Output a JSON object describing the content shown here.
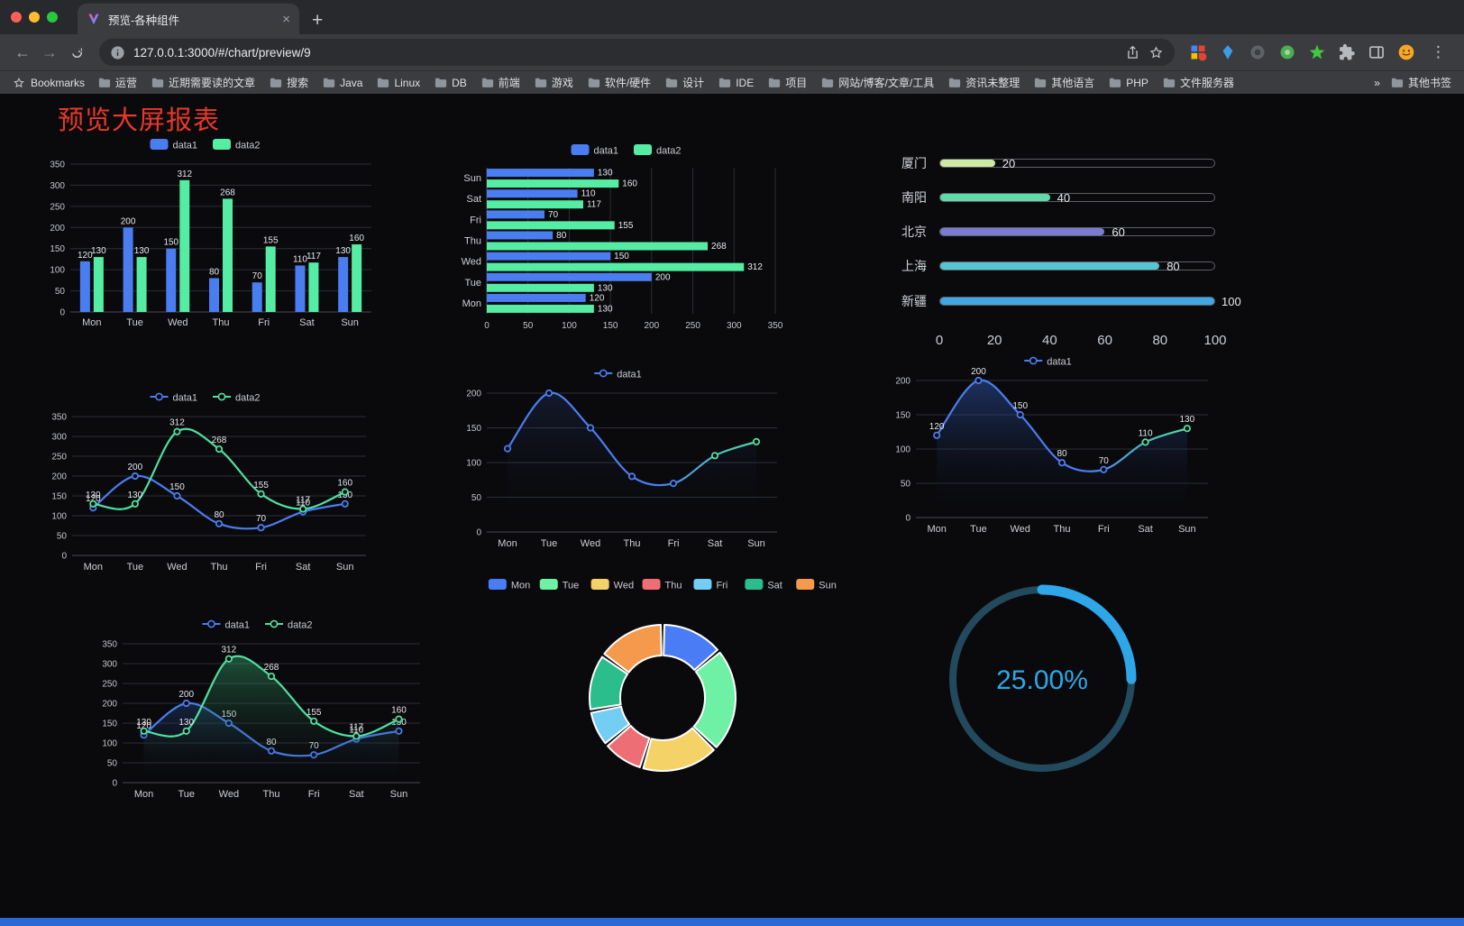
{
  "browser": {
    "tab": {
      "title": "预览-各种组件",
      "close_glyph": "×"
    },
    "new_tab_glyph": "+",
    "menu_glyph": "⋮",
    "address": {
      "url": "127.0.0.1:3000/#/chart/preview/9"
    },
    "bookmarks_bar": {
      "bookmarks_label": "Bookmarks",
      "folders": [
        "运营",
        "近期需要读的文章",
        "搜索",
        "Java",
        "Linux",
        "DB",
        "前端",
        "游戏",
        "软件/硬件",
        "设计",
        "IDE",
        "项目",
        "网站/博客/文章/工具",
        "资讯未整理",
        "其他语言",
        "PHP",
        "文件服务器"
      ],
      "overflow_glyph": "»",
      "other_bookmarks_label": "其他书签"
    }
  },
  "page": {
    "title": "预览大屏报表",
    "accent_color": "#e8382a",
    "footer_color": "#2a6ad4"
  },
  "chart_data": [
    {
      "type": "bar",
      "categories": [
        "Mon",
        "Tue",
        "Wed",
        "Thu",
        "Fri",
        "Sat",
        "Sun"
      ],
      "series": [
        {
          "name": "data1",
          "color": "#4a7df0",
          "values": [
            120,
            200,
            150,
            80,
            70,
            110,
            130
          ]
        },
        {
          "name": "data2",
          "color": "#55eda3",
          "values": [
            130,
            130,
            312,
            268,
            155,
            117,
            160
          ]
        }
      ],
      "ylim": [
        0,
        350
      ],
      "ytick": 50,
      "legend_position": "top",
      "grid": true,
      "value_labels": true
    },
    {
      "type": "hbar",
      "categories": [
        "Mon",
        "Tue",
        "Wed",
        "Thu",
        "Fri",
        "Sat",
        "Sun"
      ],
      "category_order_top_to_bottom": [
        "Sun",
        "Sat",
        "Fri",
        "Thu",
        "Wed",
        "Tue",
        "Mon"
      ],
      "series": [
        {
          "name": "data1",
          "color": "#4a7df0",
          "values": [
            120,
            200,
            150,
            80,
            70,
            110,
            130
          ]
        },
        {
          "name": "data2",
          "color": "#55eda3",
          "values": [
            130,
            130,
            312,
            268,
            155,
            117,
            160
          ]
        }
      ],
      "xlim": [
        0,
        350
      ],
      "xtick": 50,
      "legend_position": "top",
      "grid": true,
      "value_labels": true
    },
    {
      "type": "progress",
      "max": 100,
      "xticks": [
        0,
        20,
        40,
        60,
        80,
        100
      ],
      "items": [
        {
          "label": "厦门",
          "value": 20,
          "color": "#cdeaa2"
        },
        {
          "label": "南阳",
          "value": 40,
          "color": "#63d9ab"
        },
        {
          "label": "北京",
          "value": 60,
          "color": "#787dd2"
        },
        {
          "label": "上海",
          "value": 80,
          "color": "#58c5d2"
        },
        {
          "label": "新疆",
          "value": 100,
          "color": "#41a6e2"
        }
      ]
    },
    {
      "type": "line",
      "categories": [
        "Mon",
        "Tue",
        "Wed",
        "Thu",
        "Fri",
        "Sat",
        "Sun"
      ],
      "series": [
        {
          "name": "data1",
          "color": "#4a7df0",
          "values": [
            120,
            200,
            150,
            80,
            70,
            110,
            130
          ]
        },
        {
          "name": "data2",
          "color": "#4fe0a0",
          "values": [
            130,
            130,
            312,
            268,
            155,
            117,
            160
          ]
        }
      ],
      "ylim": [
        0,
        350
      ],
      "ytick": 50,
      "legend_position": "top",
      "smooth": true,
      "value_labels": true
    },
    {
      "type": "line",
      "categories": [
        "Mon",
        "Tue",
        "Wed",
        "Thu",
        "Fri",
        "Sat",
        "Sun"
      ],
      "series": [
        {
          "name": "data1",
          "color": "#4a7df0",
          "color_end": "#4fe0a0",
          "values": [
            120,
            200,
            150,
            80,
            70,
            110,
            130
          ],
          "area": "rgba(74,125,240,0.14)"
        }
      ],
      "ylim": [
        0,
        200
      ],
      "ytick": 50,
      "legend_position": "top",
      "smooth": true,
      "value_labels": false
    },
    {
      "type": "line",
      "categories": [
        "Mon",
        "Tue",
        "Wed",
        "Thu",
        "Fri",
        "Sat",
        "Sun"
      ],
      "series": [
        {
          "name": "data1",
          "color": "#4a7df0",
          "color_end": "#4fe0a0",
          "values": [
            120,
            200,
            150,
            80,
            70,
            110,
            130
          ],
          "area": "rgba(56,104,210,0.42)"
        }
      ],
      "ylim": [
        0,
        200
      ],
      "ytick": 50,
      "legend_position": "top",
      "smooth": true,
      "value_labels": true
    },
    {
      "type": "line",
      "categories": [
        "Mon",
        "Tue",
        "Wed",
        "Thu",
        "Fri",
        "Sat",
        "Sun"
      ],
      "series": [
        {
          "name": "data1",
          "color": "#4a7df0",
          "values": [
            120,
            200,
            150,
            80,
            70,
            110,
            130
          ],
          "area": "rgba(52,96,180,0.30)"
        },
        {
          "name": "data2",
          "color": "#4fe0a0",
          "values": [
            130,
            130,
            312,
            268,
            155,
            117,
            160
          ],
          "area": "rgba(64,200,134,0.38)"
        }
      ],
      "ylim": [
        0,
        350
      ],
      "ytick": 50,
      "legend_position": "top",
      "smooth": true,
      "value_labels": true
    },
    {
      "type": "pie",
      "donut": true,
      "inner_radius_ratio": 0.58,
      "labels": [
        "Mon",
        "Tue",
        "Wed",
        "Thu",
        "Fri",
        "Sat",
        "Sun"
      ],
      "values": [
        120,
        200,
        150,
        80,
        70,
        110,
        130
      ],
      "colors": [
        "#4a7df5",
        "#6ef0a5",
        "#f5d268",
        "#ed6e75",
        "#74cdf2",
        "#2cbd8d",
        "#f59a4c"
      ],
      "legend_position": "top"
    },
    {
      "type": "gauge",
      "value": 25,
      "label": "25.00%",
      "color": "#2ea6e8",
      "track_color": "#224a5c"
    }
  ]
}
